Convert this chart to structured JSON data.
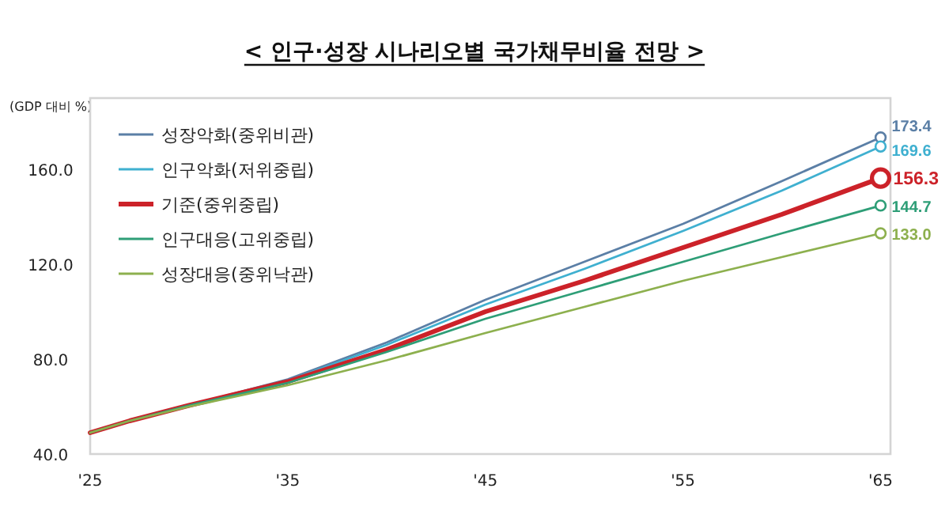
{
  "chart_data": {
    "type": "line",
    "title": "< 인구·성장 시나리오별 국가채무비율 전망 >",
    "ylabel": "(GDP 대비 %)",
    "x": [
      2025,
      2027,
      2030,
      2035,
      2040,
      2045,
      2050,
      2055,
      2060,
      2065
    ],
    "xlim": [
      2025,
      2065.5
    ],
    "xticks": [
      {
        "value": 2025,
        "label": "'25"
      },
      {
        "value": 2035,
        "label": "'35"
      },
      {
        "value": 2045,
        "label": "'45"
      },
      {
        "value": 2055,
        "label": "'55"
      },
      {
        "value": 2065,
        "label": "'65"
      }
    ],
    "ylim": [
      40,
      190
    ],
    "yticks": [
      {
        "value": 40,
        "label": "40.0"
      },
      {
        "value": 80,
        "label": "80.0"
      },
      {
        "value": 120,
        "label": "120.0"
      },
      {
        "value": 160,
        "label": "160.0"
      }
    ],
    "grid": false,
    "legend": "top left",
    "series": [
      {
        "name": "성장악화(중위비관)",
        "color": "#5b7fa6",
        "values": [
          null,
          null,
          60.5,
          71.5,
          87,
          105,
          121,
          137,
          155,
          173.4
        ],
        "value_labels": [
          null,
          null,
          null,
          null,
          null,
          null,
          null,
          null,
          null,
          "173.4"
        ]
      },
      {
        "name": "인구악화(저위중립)",
        "color": "#3fb0d0",
        "values": [
          null,
          null,
          60.5,
          71,
          86,
          103,
          118,
          134,
          151,
          169.6
        ],
        "value_labels": [
          null,
          null,
          null,
          null,
          null,
          null,
          null,
          null,
          null,
          "169.6"
        ]
      },
      {
        "name": "기준(중위중립)",
        "color": "#cc2229",
        "values": [
          49,
          54,
          60.5,
          70.5,
          84,
          100,
          113,
          127,
          141,
          156.3
        ],
        "value_labels": [
          null,
          null,
          null,
          null,
          null,
          null,
          null,
          null,
          null,
          "156.3"
        ]
      },
      {
        "name": "인구대응(고위중립)",
        "color": "#2e9e77",
        "values": [
          49,
          54,
          60.5,
          70,
          83,
          97,
          109,
          121,
          133,
          144.7
        ],
        "value_labels": [
          null,
          null,
          null,
          null,
          null,
          null,
          null,
          null,
          null,
          "144.7"
        ]
      },
      {
        "name": "성장대응(중위낙관)",
        "color": "#8db04e",
        "values": [
          49,
          54,
          60,
          69,
          79.5,
          91,
          102,
          113,
          123,
          133.0
        ],
        "value_labels": [
          null,
          null,
          null,
          null,
          null,
          null,
          null,
          null,
          null,
          "133.0"
        ]
      }
    ]
  }
}
